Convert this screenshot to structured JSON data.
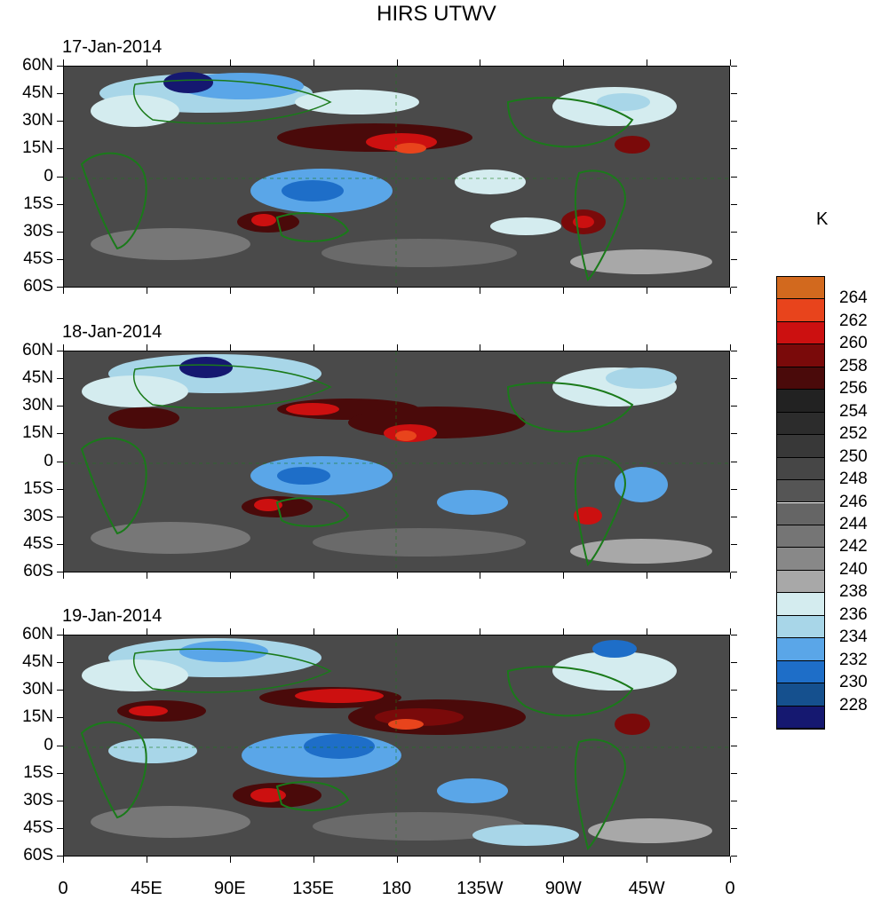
{
  "title": "HIRS UTWV",
  "unit": "K",
  "panels": [
    {
      "date": "17-Jan-2014"
    },
    {
      "date": "18-Jan-2014"
    },
    {
      "date": "19-Jan-2014"
    }
  ],
  "lat_labels": [
    "60N",
    "45N",
    "30N",
    "15N",
    "0",
    "15S",
    "30S",
    "45S",
    "60S"
  ],
  "lon_labels": [
    "0",
    "45E",
    "90E",
    "135E",
    "180",
    "135W",
    "90W",
    "45W",
    "0"
  ],
  "legend": {
    "labels": [
      "264",
      "262",
      "260",
      "258",
      "256",
      "254",
      "252",
      "250",
      "248",
      "246",
      "244",
      "242",
      "240",
      "238",
      "236",
      "234",
      "232",
      "230",
      "228"
    ],
    "colors": [
      "#d2691e",
      "#e8441c",
      "#cc1010",
      "#7a0a0a",
      "#4a0a0a",
      "#222222",
      "#2c2c2c",
      "#383838",
      "#464646",
      "#555555",
      "#656565",
      "#757575",
      "#888888",
      "#a8a8a8",
      "#d4ecef",
      "#a8d6e8",
      "#5aa6e8",
      "#1e6ec8",
      "#15508e",
      "#151870"
    ]
  }
}
